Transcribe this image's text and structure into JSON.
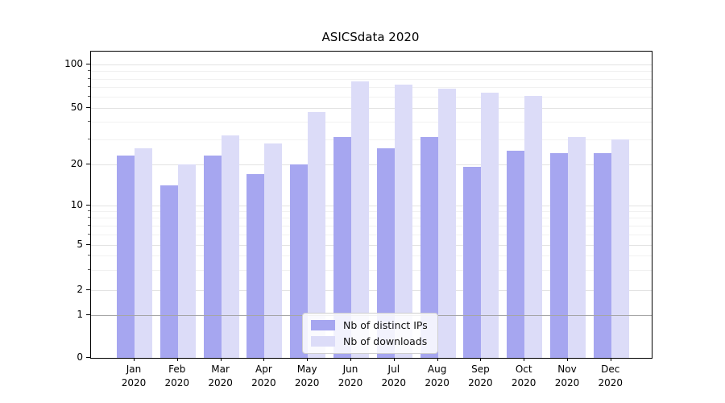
{
  "title": "ASICSdata 2020",
  "colors": {
    "ips_bar": "#a6a6f0",
    "downloads_bar": "#dcdcf8",
    "grid_major": "#e3e3e3",
    "grid_minor": "#f1f1f1",
    "refline": "#a6a6a6",
    "spine": "#000000"
  },
  "y_axis": {
    "ticks": [
      100,
      50,
      20,
      10,
      5,
      2,
      1,
      0
    ],
    "minor_gridline_values": [
      90,
      80,
      70,
      60,
      40,
      30,
      9,
      8,
      7,
      6,
      4,
      3
    ]
  },
  "x_axis": {
    "months": [
      "Jan",
      "Feb",
      "Mar",
      "Apr",
      "May",
      "Jun",
      "Jul",
      "Aug",
      "Sep",
      "Oct",
      "Nov",
      "Dec"
    ],
    "year": "2020"
  },
  "legend": {
    "items": [
      {
        "label": "Nb of distinct IPs",
        "color_key": "ips_bar"
      },
      {
        "label": "Nb of downloads",
        "color_key": "downloads_bar"
      }
    ]
  },
  "chart_data": {
    "type": "bar",
    "title": "ASICSdata 2020",
    "categories": [
      "Jan 2020",
      "Feb 2020",
      "Mar 2020",
      "Apr 2020",
      "May 2020",
      "Jun 2020",
      "Jul 2020",
      "Aug 2020",
      "Sep 2020",
      "Oct 2020",
      "Nov 2020",
      "Dec 2020"
    ],
    "series": [
      {
        "name": "Nb of distinct IPs",
        "values": [
          23,
          14,
          23,
          17,
          20,
          31,
          26,
          31,
          19,
          25,
          24,
          24
        ]
      },
      {
        "name": "Nb of downloads",
        "values": [
          26,
          20,
          32,
          28,
          47,
          77,
          73,
          68,
          64,
          61,
          31,
          30
        ]
      }
    ],
    "yscale": "symlog",
    "yticks": [
      100,
      50,
      20,
      10,
      5,
      2,
      1,
      0
    ],
    "ylim": [
      0,
      123
    ],
    "xlabel": "",
    "ylabel": "",
    "grid": true,
    "minor_grid": true,
    "refline_y": 1,
    "legend_position": "lower center"
  }
}
